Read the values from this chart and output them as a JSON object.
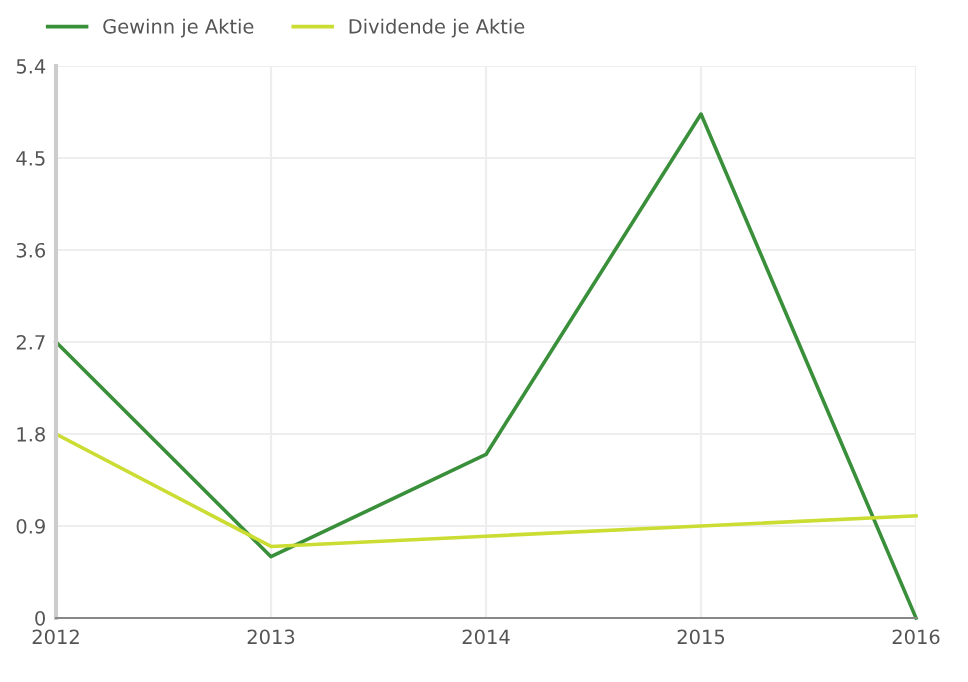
{
  "chart_data": {
    "type": "line",
    "x": [
      2012,
      2013,
      2014,
      2015,
      2016
    ],
    "series": [
      {
        "name": "Gewinn je Aktie",
        "color": "#3a8f3a",
        "values": [
          2.7,
          0.6,
          1.6,
          4.93,
          0
        ]
      },
      {
        "name": "Dividende je Aktie",
        "color": "#cbdc32",
        "values": [
          1.8,
          0.7,
          0.8,
          0.9,
          1.0
        ]
      }
    ],
    "xlim": [
      2012,
      2016
    ],
    "xticks": [
      2012,
      2013,
      2014,
      2015,
      2016
    ],
    "ylim": [
      0,
      5.4
    ],
    "yticks": [
      0,
      0.9,
      1.8,
      2.7,
      3.6,
      4.5,
      5.4
    ],
    "grid": true,
    "legend": "top left",
    "marker": "none"
  }
}
